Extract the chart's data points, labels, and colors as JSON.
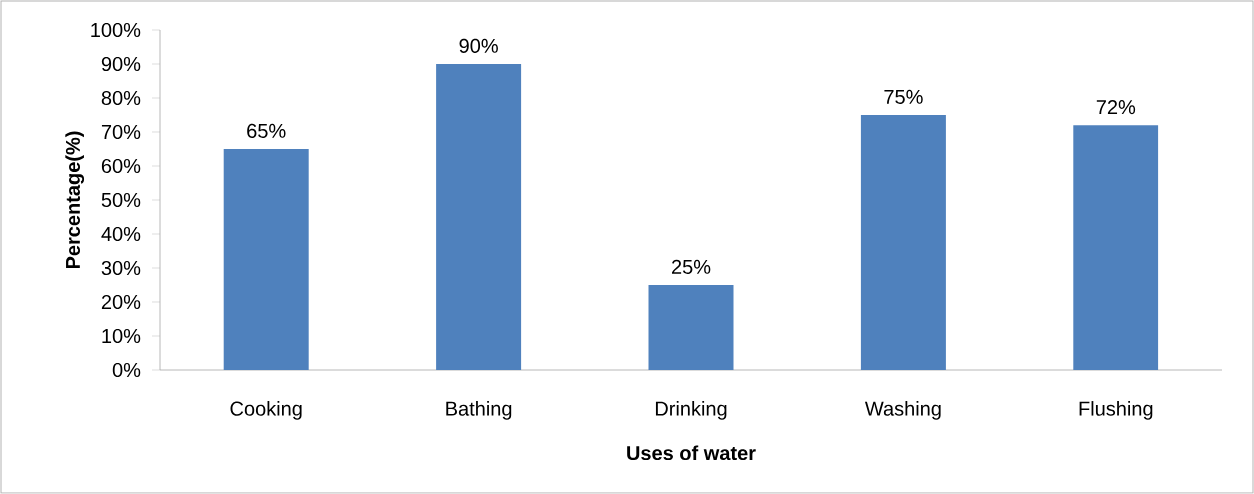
{
  "chart_data": {
    "type": "bar",
    "xlabel": "Uses of water",
    "ylabel": "Percentage(%)",
    "categories": [
      "Cooking",
      "Bathing",
      "Drinking",
      "Washing",
      "Flushing"
    ],
    "values": [
      65,
      90,
      25,
      75,
      72
    ],
    "color": "#4f81bd",
    "value_labels": [
      "65%",
      "90%",
      "25%",
      "75%",
      "72%"
    ],
    "ylim": [
      0,
      100
    ],
    "yticks": [
      {
        "value": 0,
        "label": "0%"
      },
      {
        "value": 10,
        "label": "10%"
      },
      {
        "value": 20,
        "label": "20%"
      },
      {
        "value": 30,
        "label": "30%"
      },
      {
        "value": 40,
        "label": "40%"
      },
      {
        "value": 50,
        "label": "50%"
      },
      {
        "value": 60,
        "label": "60%"
      },
      {
        "value": 70,
        "label": "70%"
      },
      {
        "value": 80,
        "label": "80%"
      },
      {
        "value": 90,
        "label": "90%"
      },
      {
        "value": 100,
        "label": "100%"
      }
    ]
  }
}
